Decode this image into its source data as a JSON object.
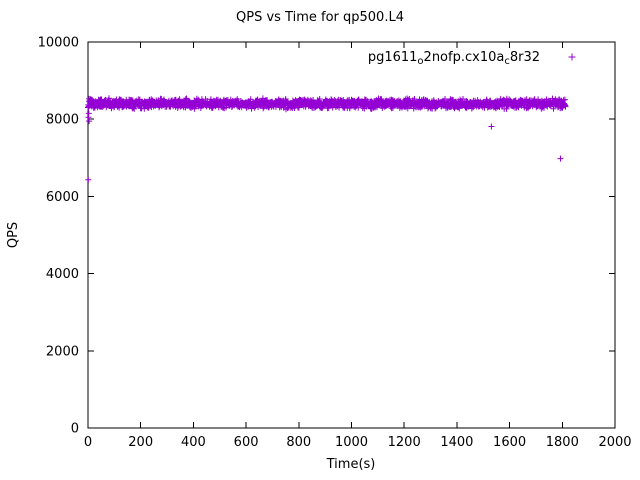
{
  "chart_data": {
    "type": "scatter",
    "title": "QPS vs Time for qp500.L4",
    "xlabel": "Time(s)",
    "ylabel": "QPS",
    "xlim": [
      0,
      2000
    ],
    "ylim": [
      0,
      10000
    ],
    "x_ticks": [
      0,
      200,
      400,
      600,
      800,
      1000,
      1200,
      1400,
      1600,
      1800,
      2000
    ],
    "y_ticks": [
      0,
      2000,
      4000,
      6000,
      8000,
      10000
    ],
    "grid": false,
    "legend_position": "top-right-inside",
    "marker": "plus",
    "marker_color": "#9400d3",
    "series": [
      {
        "name": "pg1611_o2nofp.cx10a_c8r32",
        "label_parts": [
          {
            "text": "pg1611"
          },
          {
            "sub": "o"
          },
          {
            "text": "2nofp.cx10a"
          },
          {
            "sub": "c"
          },
          {
            "text": "8r32"
          }
        ],
        "summary": "Dense band of per-second QPS samples averaging ~8400 QPS from t=0s to t=1810s",
        "band": {
          "x_min": 0,
          "x_max": 1812,
          "y_mean": 8400,
          "y_jitter": 145,
          "n_points": 1800,
          "seed": 42
        },
        "outliers": [
          [
            1,
            6430
          ],
          [
            2,
            8050
          ],
          [
            3,
            8150
          ],
          [
            4,
            7950
          ],
          [
            1531,
            7810
          ],
          [
            1793,
            6980
          ]
        ]
      }
    ]
  }
}
